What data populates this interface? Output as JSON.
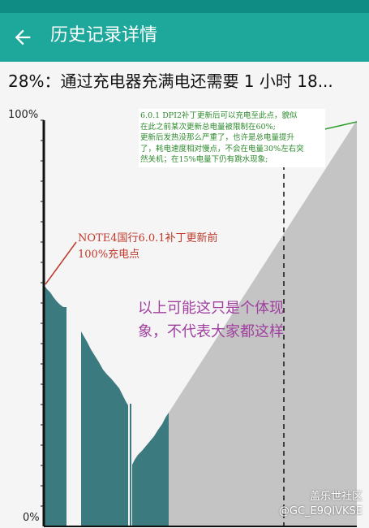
{
  "app_bar": {
    "title": "历史记录详情",
    "back_icon": "arrow-left-icon",
    "color": "#1ea79b"
  },
  "summary": "28%：通过充电器充满电还需要 1 小时 18...",
  "chart": {
    "y_max_label": "100%",
    "y_min_label": "0%",
    "colors": {
      "discharge": "#3b7a7e",
      "prediction": "#c4c4c4",
      "marker_line": "#2e9e2e"
    }
  },
  "annotations": {
    "green": "6.0.1 DPI2补丁更新后可以充电至此点，貌似\n在此之前某次更新总电量被限制在60%;\n更新后发热没那么严重了，也许是总电量提升\n了，耗电速度相对慢点，不会在电量30%左右突\n然关机；在15%电量下仍有跳水现象;",
    "red": "NOTE4国行6.0.1补丁更新前\n100%充电点",
    "purple": "以上可能这只是个体现\n象，不代表大家都这样"
  },
  "watermark": {
    "line1": "盖乐世社区",
    "line2": "@GC_E9QIVKSE"
  }
}
